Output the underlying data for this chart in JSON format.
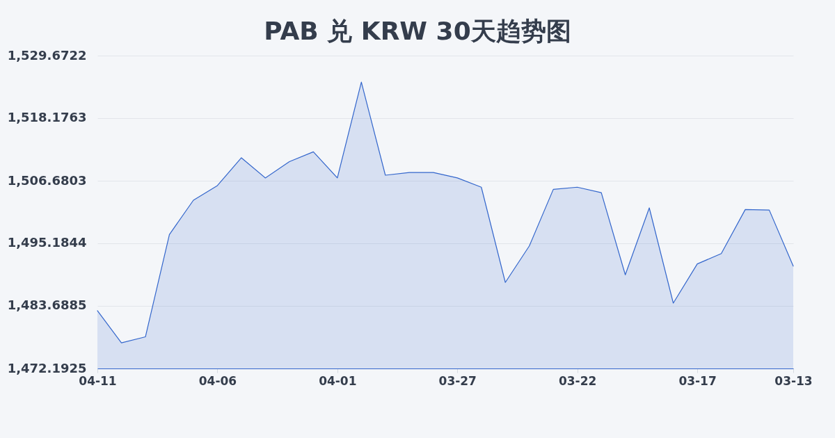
{
  "chart_data": {
    "type": "area",
    "title": "PAB 兑 KRW 30天趋势图",
    "categories": [
      "04-11",
      null,
      null,
      null,
      null,
      "04-06",
      null,
      null,
      null,
      null,
      "04-01",
      null,
      null,
      null,
      null,
      "03-27",
      null,
      null,
      null,
      null,
      "03-22",
      null,
      null,
      null,
      null,
      "03-17",
      null,
      null,
      null,
      "03-13"
    ],
    "series": [
      {
        "color": "#3366cc",
        "values": [
          1482.8,
          1476.9,
          1478.0,
          1496.8,
          1503.1,
          1505.8,
          1510.9,
          1507.2,
          1510.2,
          1512.0,
          1507.2,
          1524.8,
          1507.7,
          1508.2,
          1508.2,
          1507.2,
          1505.5,
          1488.0,
          1494.7,
          1505.1,
          1505.5,
          1504.5,
          1489.4,
          1501.7,
          1484.2,
          1491.4,
          1493.3,
          1501.4,
          1501.3,
          1491.0
        ]
      }
    ],
    "ylim": [
      1472.1925,
      1529.6722
    ],
    "yticks": [
      {
        "value": 1472.1925,
        "label": "1,472.1925"
      },
      {
        "value": 1483.6885,
        "label": "1,483.6885"
      },
      {
        "value": 1495.1844,
        "label": "1,495.1844"
      },
      {
        "value": 1506.6803,
        "label": "1,506.6803"
      },
      {
        "value": 1518.1763,
        "label": "1,518.1763"
      },
      {
        "value": 1529.6722,
        "label": "1,529.6722"
      }
    ],
    "grid": "y"
  }
}
